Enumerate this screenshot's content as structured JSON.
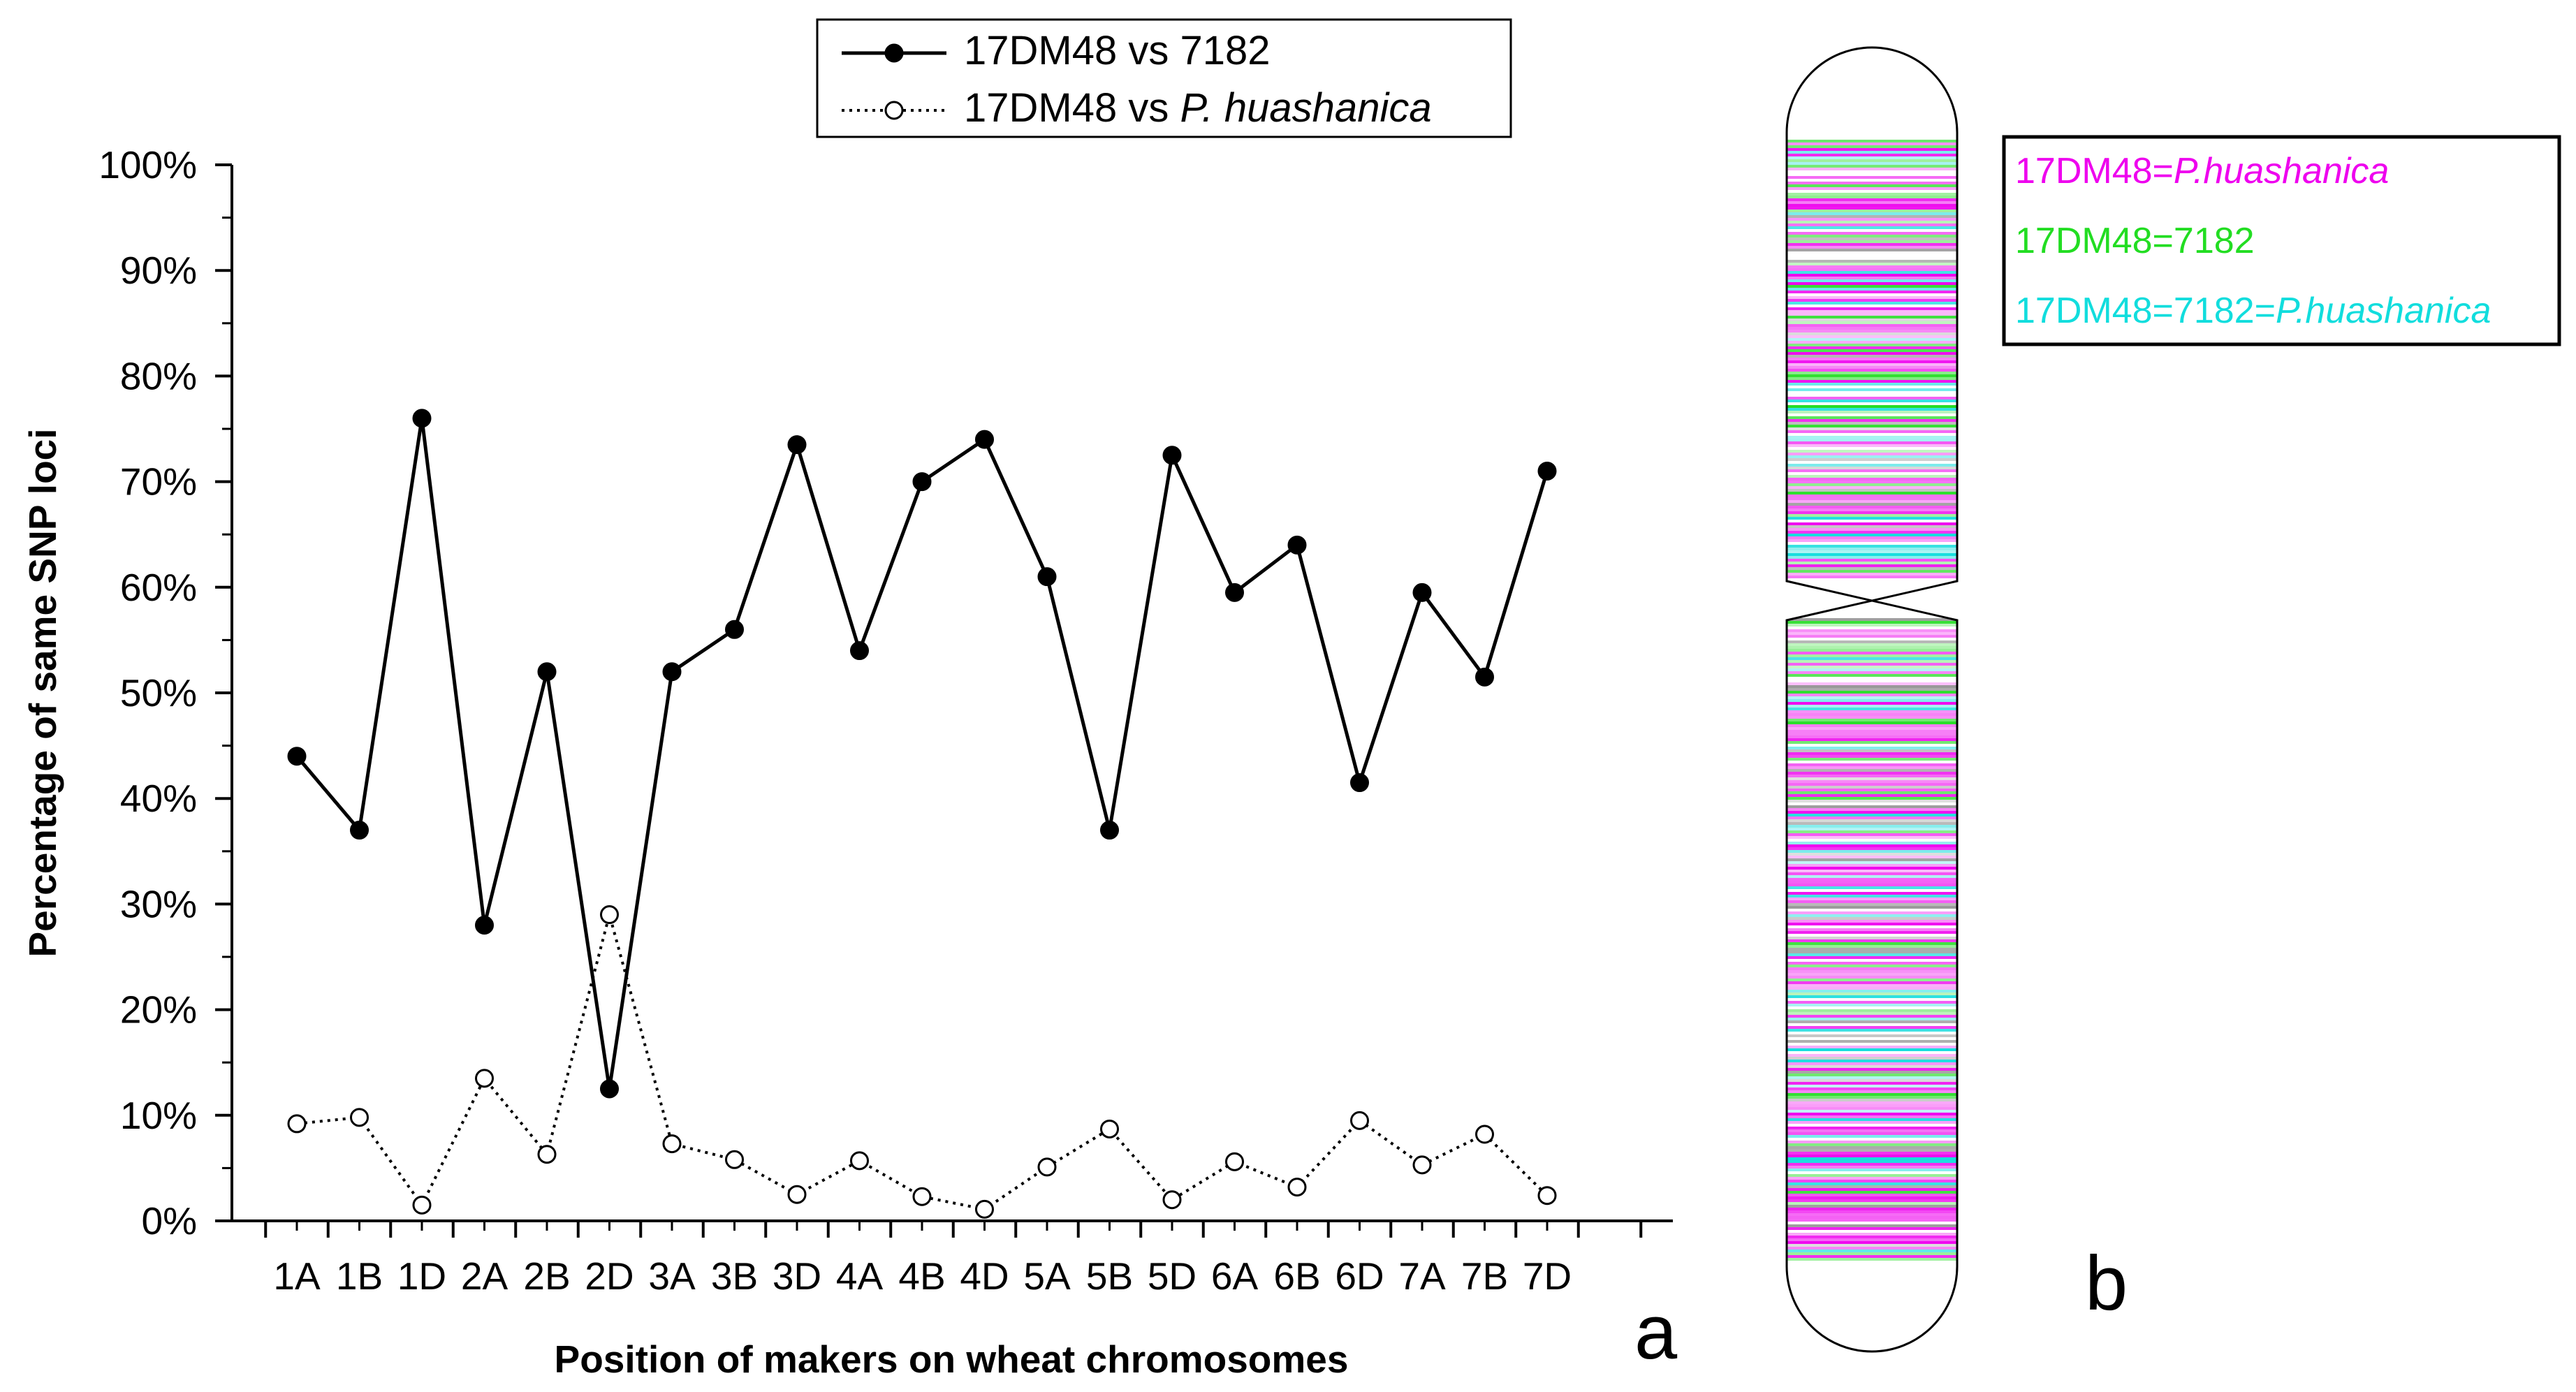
{
  "chart_data": {
    "type": "line",
    "categories": [
      "1A",
      "1B",
      "1D",
      "2A",
      "2B",
      "2D",
      "3A",
      "3B",
      "3D",
      "4A",
      "4B",
      "4D",
      "5A",
      "5B",
      "5D",
      "6A",
      "6B",
      "6D",
      "7A",
      "7B",
      "7D"
    ],
    "series": [
      {
        "name": "17DM48 vs 7182",
        "name_prefix": "17DM48 vs ",
        "name_species": "7182",
        "style": "solid",
        "marker": "filled-circle",
        "color": "#000000",
        "values": [
          44,
          37,
          76,
          28,
          52,
          12.5,
          52,
          56,
          73.5,
          54,
          70,
          74,
          61,
          37,
          72.5,
          59.5,
          64,
          41.5,
          59.5,
          51.5,
          71
        ]
      },
      {
        "name": "17DM48 vs P. huashanica",
        "name_prefix": "17DM48 vs ",
        "name_species": "P. huashanica",
        "style": "dotted",
        "marker": "open-circle",
        "color": "#000000",
        "values": [
          9.2,
          9.8,
          1.5,
          13.5,
          6.3,
          29,
          7.3,
          5.8,
          2.5,
          5.7,
          2.3,
          1.1,
          5.1,
          8.7,
          2,
          5.6,
          3.2,
          9.5,
          5.3,
          8.2,
          2.4
        ]
      }
    ],
    "title": "",
    "xlabel": "Position of makers on wheat chromosomes",
    "ylabel": "Percentage of same SNP loci",
    "ylim": [
      0,
      100
    ],
    "yticks": [
      "0%",
      "10%",
      "20%",
      "30%",
      "40%",
      "50%",
      "60%",
      "70%",
      "80%",
      "90%",
      "100%"
    ],
    "grid": false,
    "legend_position": "top-center",
    "panel_label": "a"
  },
  "panel_b": {
    "panel_label": "b",
    "legend": [
      {
        "prefix": "17DM48=",
        "species": "P.huashanica",
        "color": "#ee00ee"
      },
      {
        "prefix": "17DM48=7182",
        "species": "",
        "color": "#22dd22"
      },
      {
        "prefix": "17DM48=7182=",
        "species": "P.huashanica",
        "color": "#11dddd"
      }
    ]
  }
}
